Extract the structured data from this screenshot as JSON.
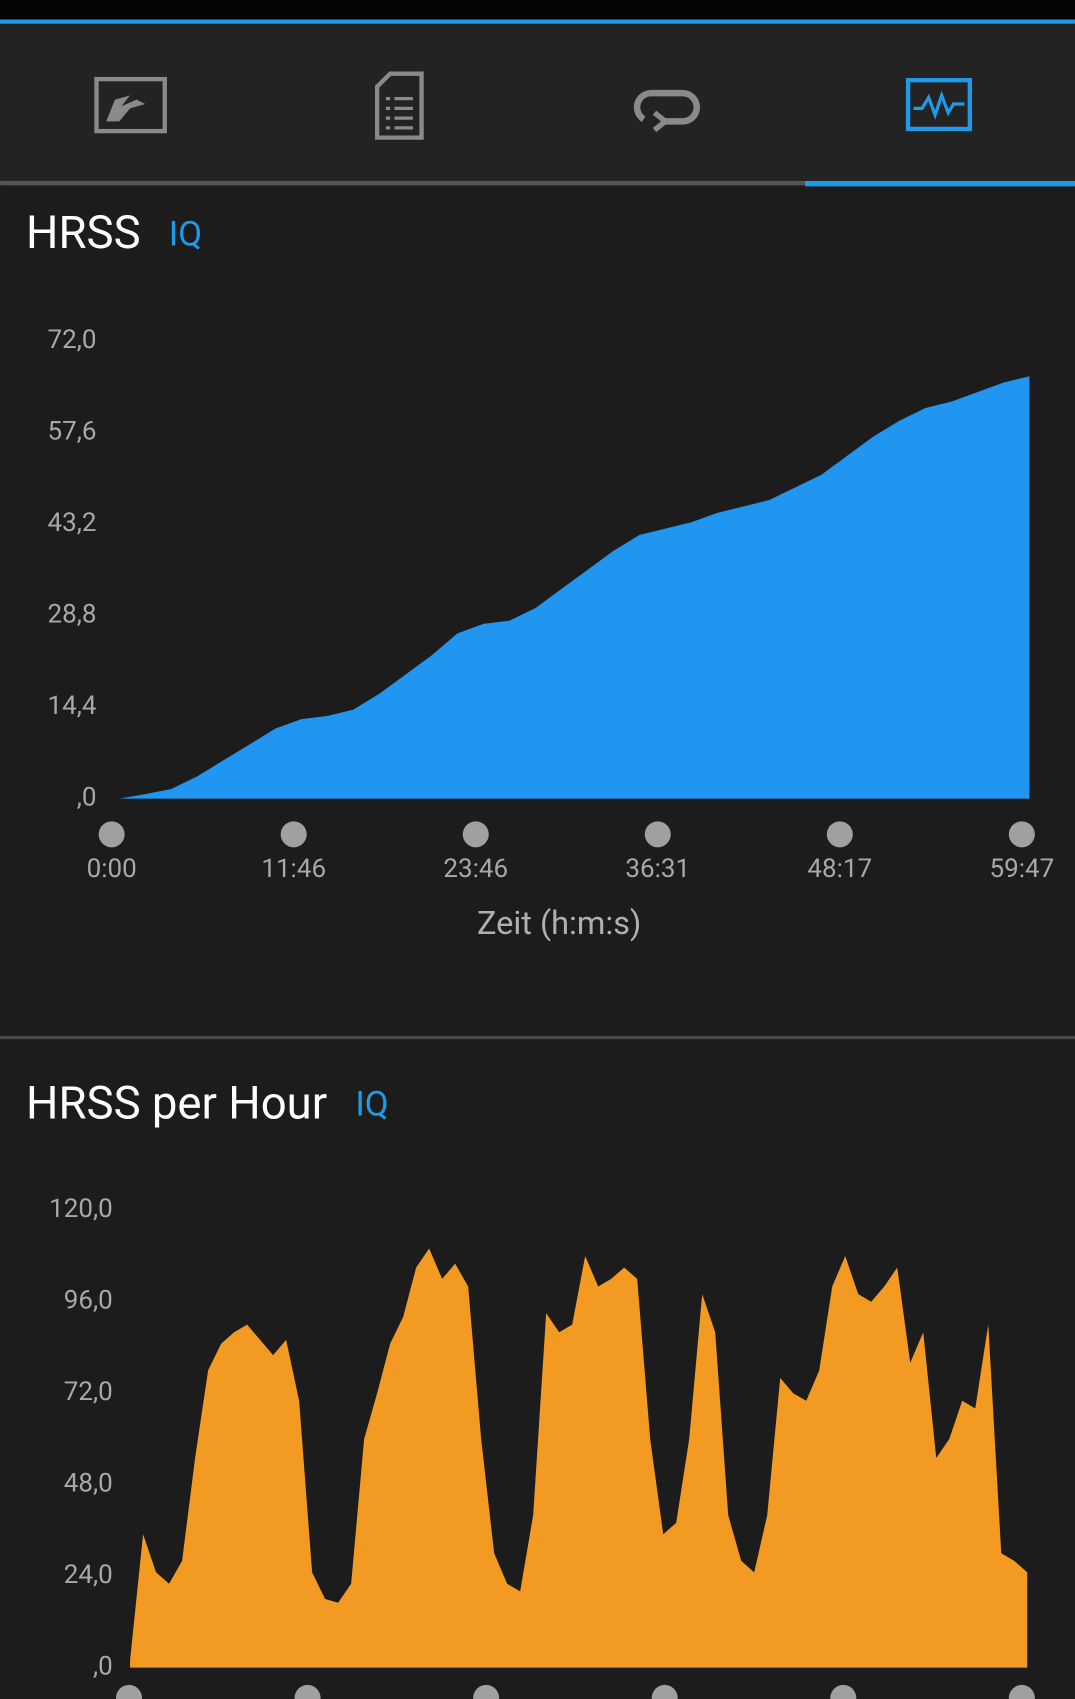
{
  "chart_data": [
    {
      "type": "area",
      "title": "HRSS",
      "badge": "IQ",
      "xlabel": "Zeit (h:m:s)",
      "xtick_labels": [
        "0:00",
        "11:46",
        "23:46",
        "36:31",
        "48:17",
        "59:47"
      ],
      "ylim": [
        0,
        72
      ],
      "yticks": [
        {
          "value": 0,
          "label": ",0"
        },
        {
          "value": 14.4,
          "label": "14,4"
        },
        {
          "value": 28.8,
          "label": "28,8"
        },
        {
          "value": 43.2,
          "label": "43,2"
        },
        {
          "value": 57.6,
          "label": "57,6"
        },
        {
          "value": 72,
          "label": "72,0"
        }
      ],
      "series": [
        {
          "name": "HRSS",
          "color": "#2196f0",
          "values": [
            0,
            0.7,
            1.5,
            3.5,
            6,
            8.5,
            11,
            12.5,
            13,
            14,
            16.5,
            19.5,
            22.5,
            26,
            27.5,
            28,
            30,
            33,
            36,
            39,
            41.5,
            42.5,
            43.5,
            45,
            46,
            47,
            49,
            51,
            54,
            57,
            59.5,
            61.5,
            62.5,
            64,
            65.5,
            66.5
          ]
        }
      ]
    },
    {
      "type": "area",
      "title": "HRSS per Hour",
      "badge": "IQ",
      "ylim": [
        0,
        120
      ],
      "yticks": [
        {
          "value": 0,
          "label": ",0"
        },
        {
          "value": 24,
          "label": "24,0"
        },
        {
          "value": 48,
          "label": "48,0"
        },
        {
          "value": 72,
          "label": "72,0"
        },
        {
          "value": 96,
          "label": "96,0"
        },
        {
          "value": 120,
          "label": "120,0"
        }
      ],
      "series": [
        {
          "name": "HRSS per Hour",
          "color": "#f29a22",
          "values": [
            2,
            35,
            25,
            22,
            28,
            55,
            78,
            85,
            88,
            90,
            86,
            82,
            86,
            70,
            25,
            18,
            17,
            22,
            60,
            72,
            85,
            92,
            105,
            110,
            102,
            106,
            100,
            60,
            30,
            22,
            20,
            40,
            93,
            88,
            90,
            108,
            100,
            102,
            105,
            102,
            60,
            35,
            38,
            60,
            98,
            88,
            40,
            28,
            25,
            40,
            76,
            72,
            70,
            78,
            100,
            108,
            98,
            96,
            100,
            105,
            80,
            88,
            55,
            60,
            70,
            68,
            90,
            30,
            28,
            25
          ]
        }
      ]
    }
  ]
}
